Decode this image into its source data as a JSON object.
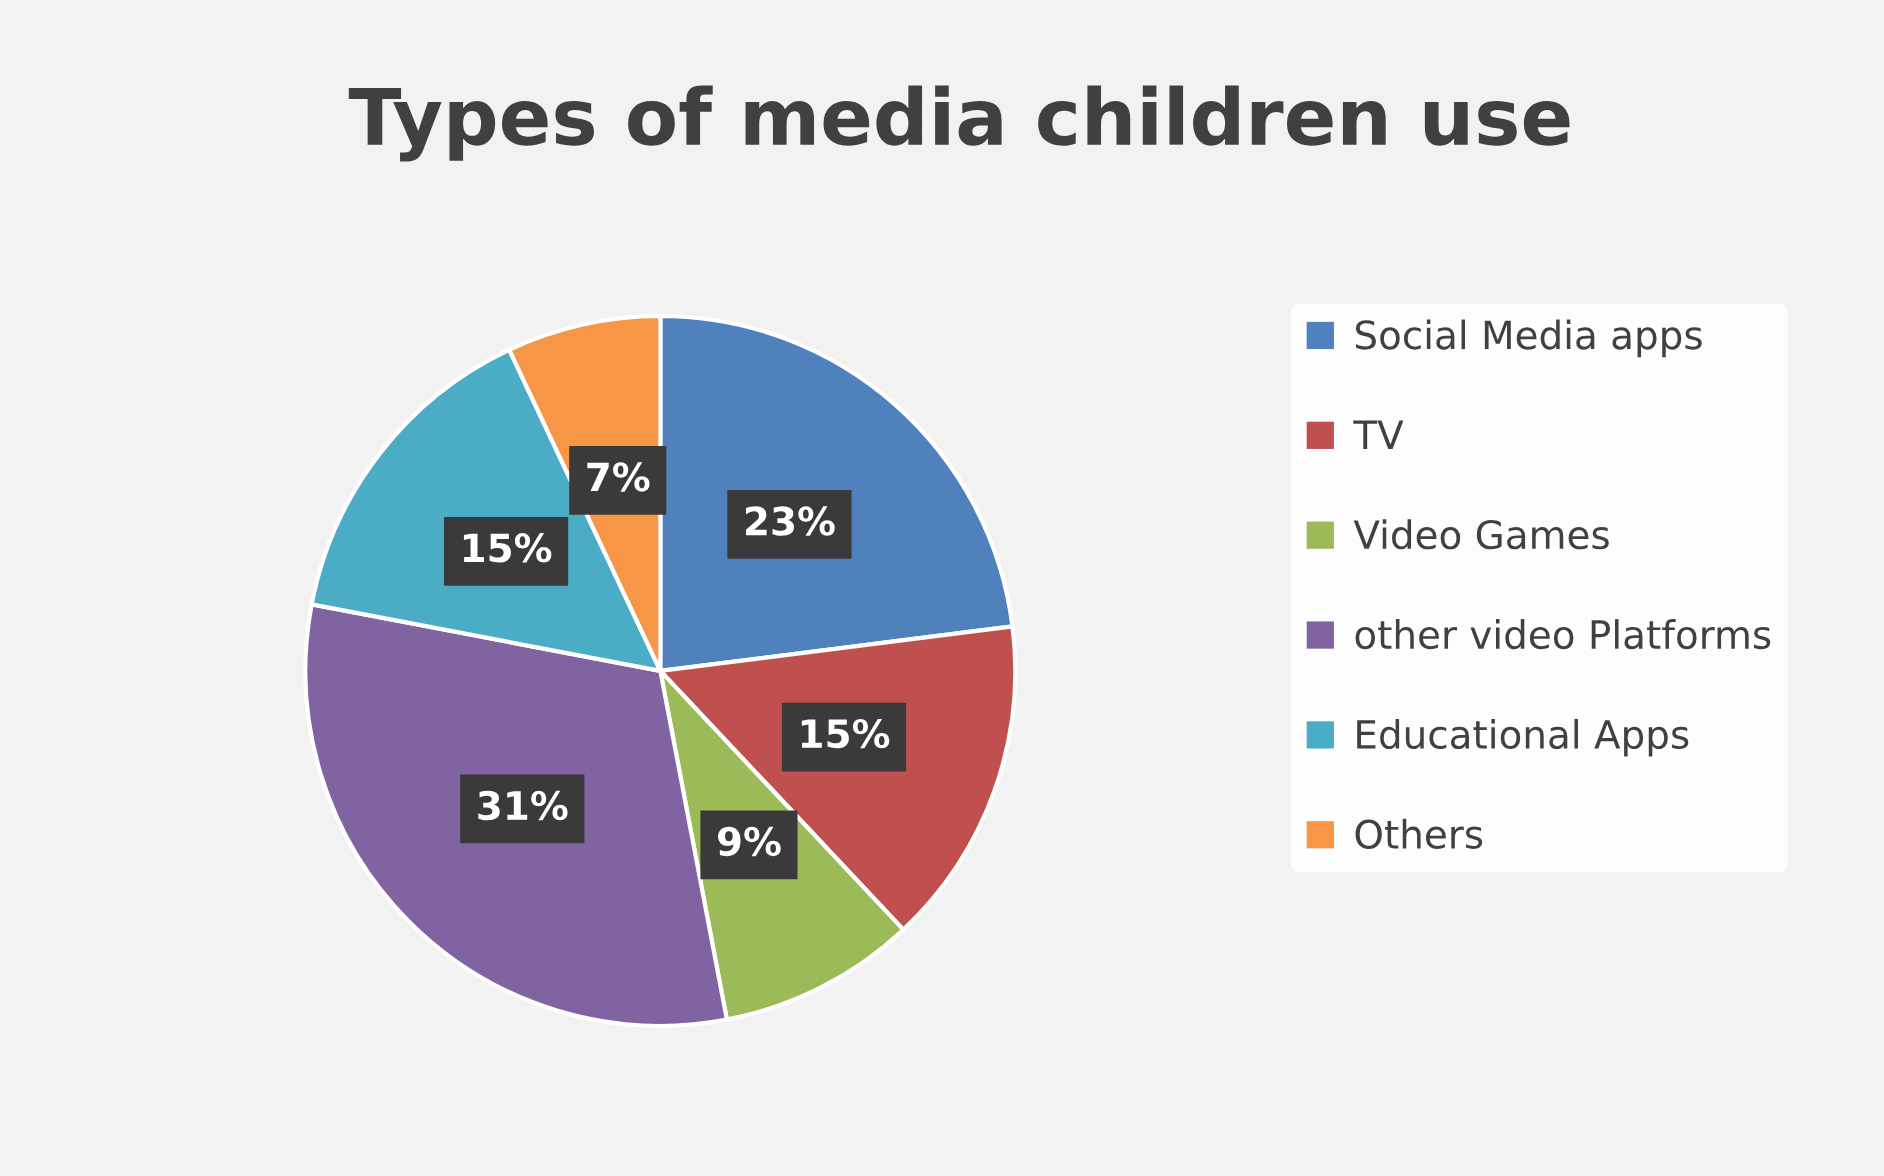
{
  "chart_data": {
    "type": "pie",
    "title": "Types of media children use",
    "categories": [
      "Social Media apps",
      "TV",
      "Video Games",
      "other video Platforms",
      "Educational Apps",
      "Others"
    ],
    "values": [
      23,
      15,
      9,
      31,
      15,
      7
    ],
    "colors": [
      "#4f81bd",
      "#c0504d",
      "#9bbb59",
      "#8064a2",
      "#4bacc6",
      "#f79646"
    ],
    "value_labels": [
      "23%",
      "15%",
      "9%",
      "31%",
      "15%",
      "7%"
    ],
    "legend": "right"
  }
}
